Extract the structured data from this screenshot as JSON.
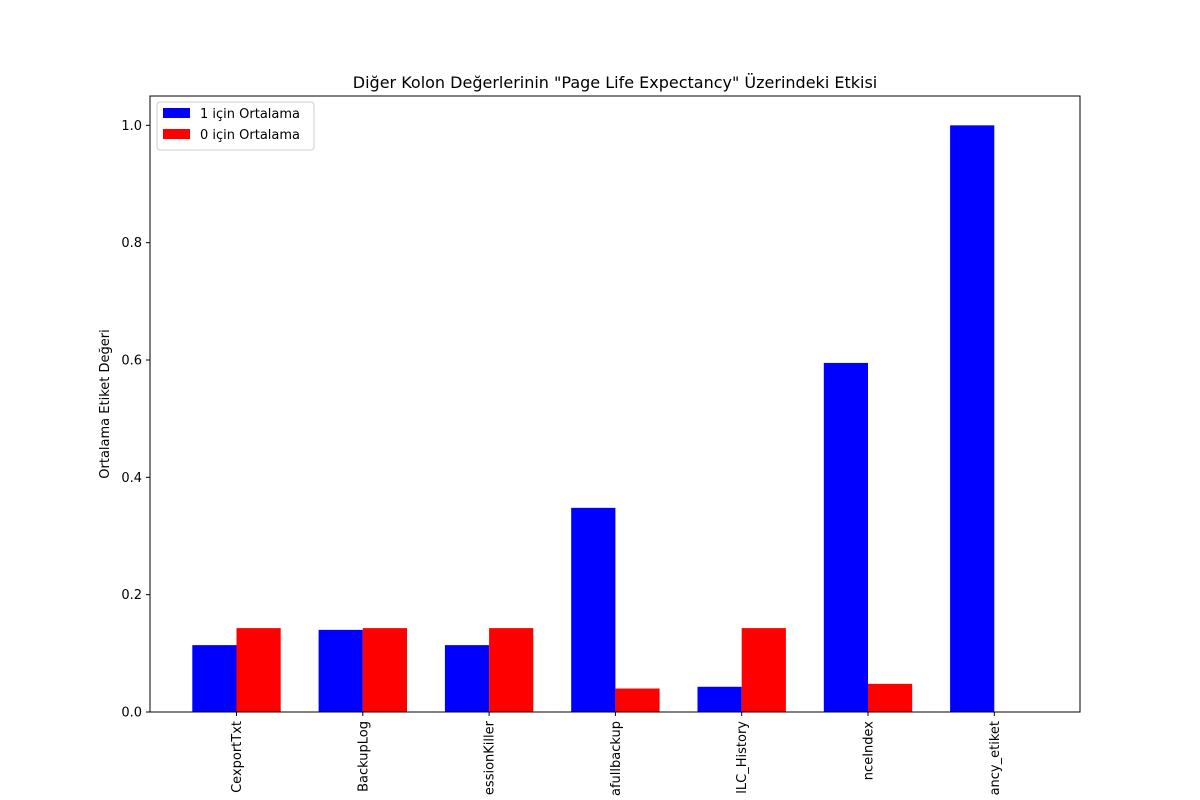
{
  "chart_data": {
    "type": "bar",
    "title": "Diğer Kolon Değerlerinin \"Page Life Expectancy\" Üzerindeki Etkisi",
    "xlabel": "",
    "ylabel": "Ortalama Etiket Değeri",
    "categories": [
      "CexportTxt",
      "BackupLog",
      "essionKiller",
      "afullbackup",
      "lLC_History",
      "nceIndex",
      "ancy_etiket"
    ],
    "series": [
      {
        "name": "1 için Ortalama",
        "color": "#0000ff",
        "values": [
          0.114,
          0.14,
          0.114,
          0.348,
          0.043,
          0.595,
          1.0
        ]
      },
      {
        "name": "0 için Ortalama",
        "color": "#ff0000",
        "values": [
          0.143,
          0.143,
          0.143,
          0.04,
          0.143,
          0.048,
          0.0
        ]
      }
    ],
    "ylim": [
      0,
      1.05
    ],
    "yticks": [
      "0.0",
      "0.2",
      "0.4",
      "0.6",
      "0.8",
      "1.0"
    ],
    "grid": false,
    "legend": "upper-left"
  }
}
